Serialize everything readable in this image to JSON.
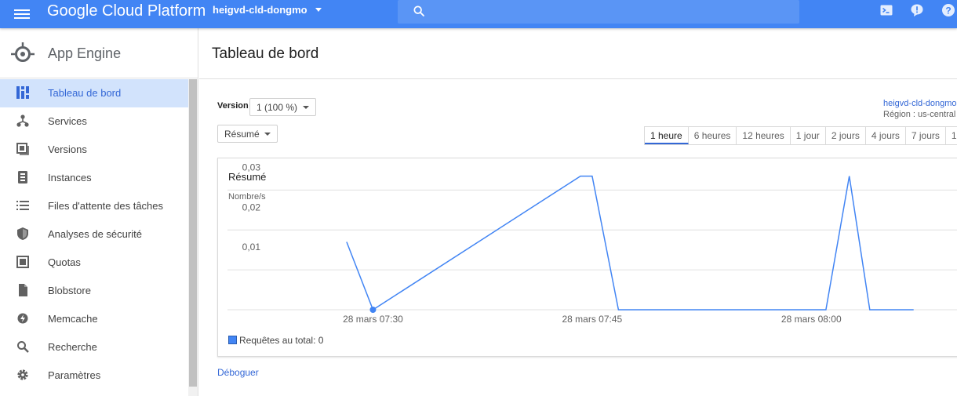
{
  "topbar": {
    "brand": "Google Cloud Platform",
    "project": "heigvd-cld-dongmo",
    "icons": [
      "menu-icon",
      "search-icon",
      "cloud-shell-icon",
      "feedback-icon",
      "help-icon"
    ]
  },
  "sidebar": {
    "title": "App Engine",
    "items": [
      {
        "label": "Tableau de bord",
        "icon": "dashboard-icon",
        "active": true
      },
      {
        "label": "Services",
        "icon": "services-icon"
      },
      {
        "label": "Versions",
        "icon": "versions-icon"
      },
      {
        "label": "Instances",
        "icon": "instances-icon"
      },
      {
        "label": "Files d'attente des tâches",
        "icon": "list-icon"
      },
      {
        "label": "Analyses de sécurité",
        "icon": "shield-icon"
      },
      {
        "label": "Quotas",
        "icon": "quotas-icon"
      },
      {
        "label": "Blobstore",
        "icon": "file-icon"
      },
      {
        "label": "Memcache",
        "icon": "memcache-icon"
      },
      {
        "label": "Recherche",
        "icon": "search-icon"
      },
      {
        "label": "Paramètres",
        "icon": "gear-icon"
      }
    ]
  },
  "main": {
    "title": "Tableau de bord",
    "version_label": "Version",
    "version_value": "1 (100 %)",
    "summary_value": "Résumé",
    "project_link": "heigvd-cld-dongmo",
    "region": "Région : us-central",
    "time_ranges": [
      "1 heure",
      "6 heures",
      "12 heures",
      "1 jour",
      "2 jours",
      "4 jours",
      "7 jours",
      "1"
    ],
    "active_range": "1 heure",
    "debug_link": "Déboguer"
  },
  "colors": {
    "accent": "#4285f4",
    "link": "#3367d6",
    "active_bg": "#d2e3fc"
  },
  "chart_data": {
    "type": "line",
    "title": "Résumé",
    "ylabel": "Nombre/s",
    "yticks": [
      "0,01",
      "0,02",
      "0,03"
    ],
    "ylim": [
      0,
      0.035
    ],
    "xlim": [
      -5.3,
      20.2
    ],
    "xtick_labels": [
      "28 mars 07:30",
      "28 mars 07:45",
      "28 mars 08:00"
    ],
    "xtick_values": [
      0,
      7.5,
      15
    ],
    "legend": "Requêtes au total: 0",
    "series": [
      {
        "x": [
          -0.9,
          0,
          7.1,
          7.5,
          8.4,
          15.5,
          16.3,
          17.0,
          18.5
        ],
        "y": [
          0.017,
          0,
          0.0335,
          0.0335,
          0,
          0,
          0.0335,
          0,
          0
        ]
      }
    ],
    "marker": {
      "x": 0,
      "y": 0
    }
  }
}
